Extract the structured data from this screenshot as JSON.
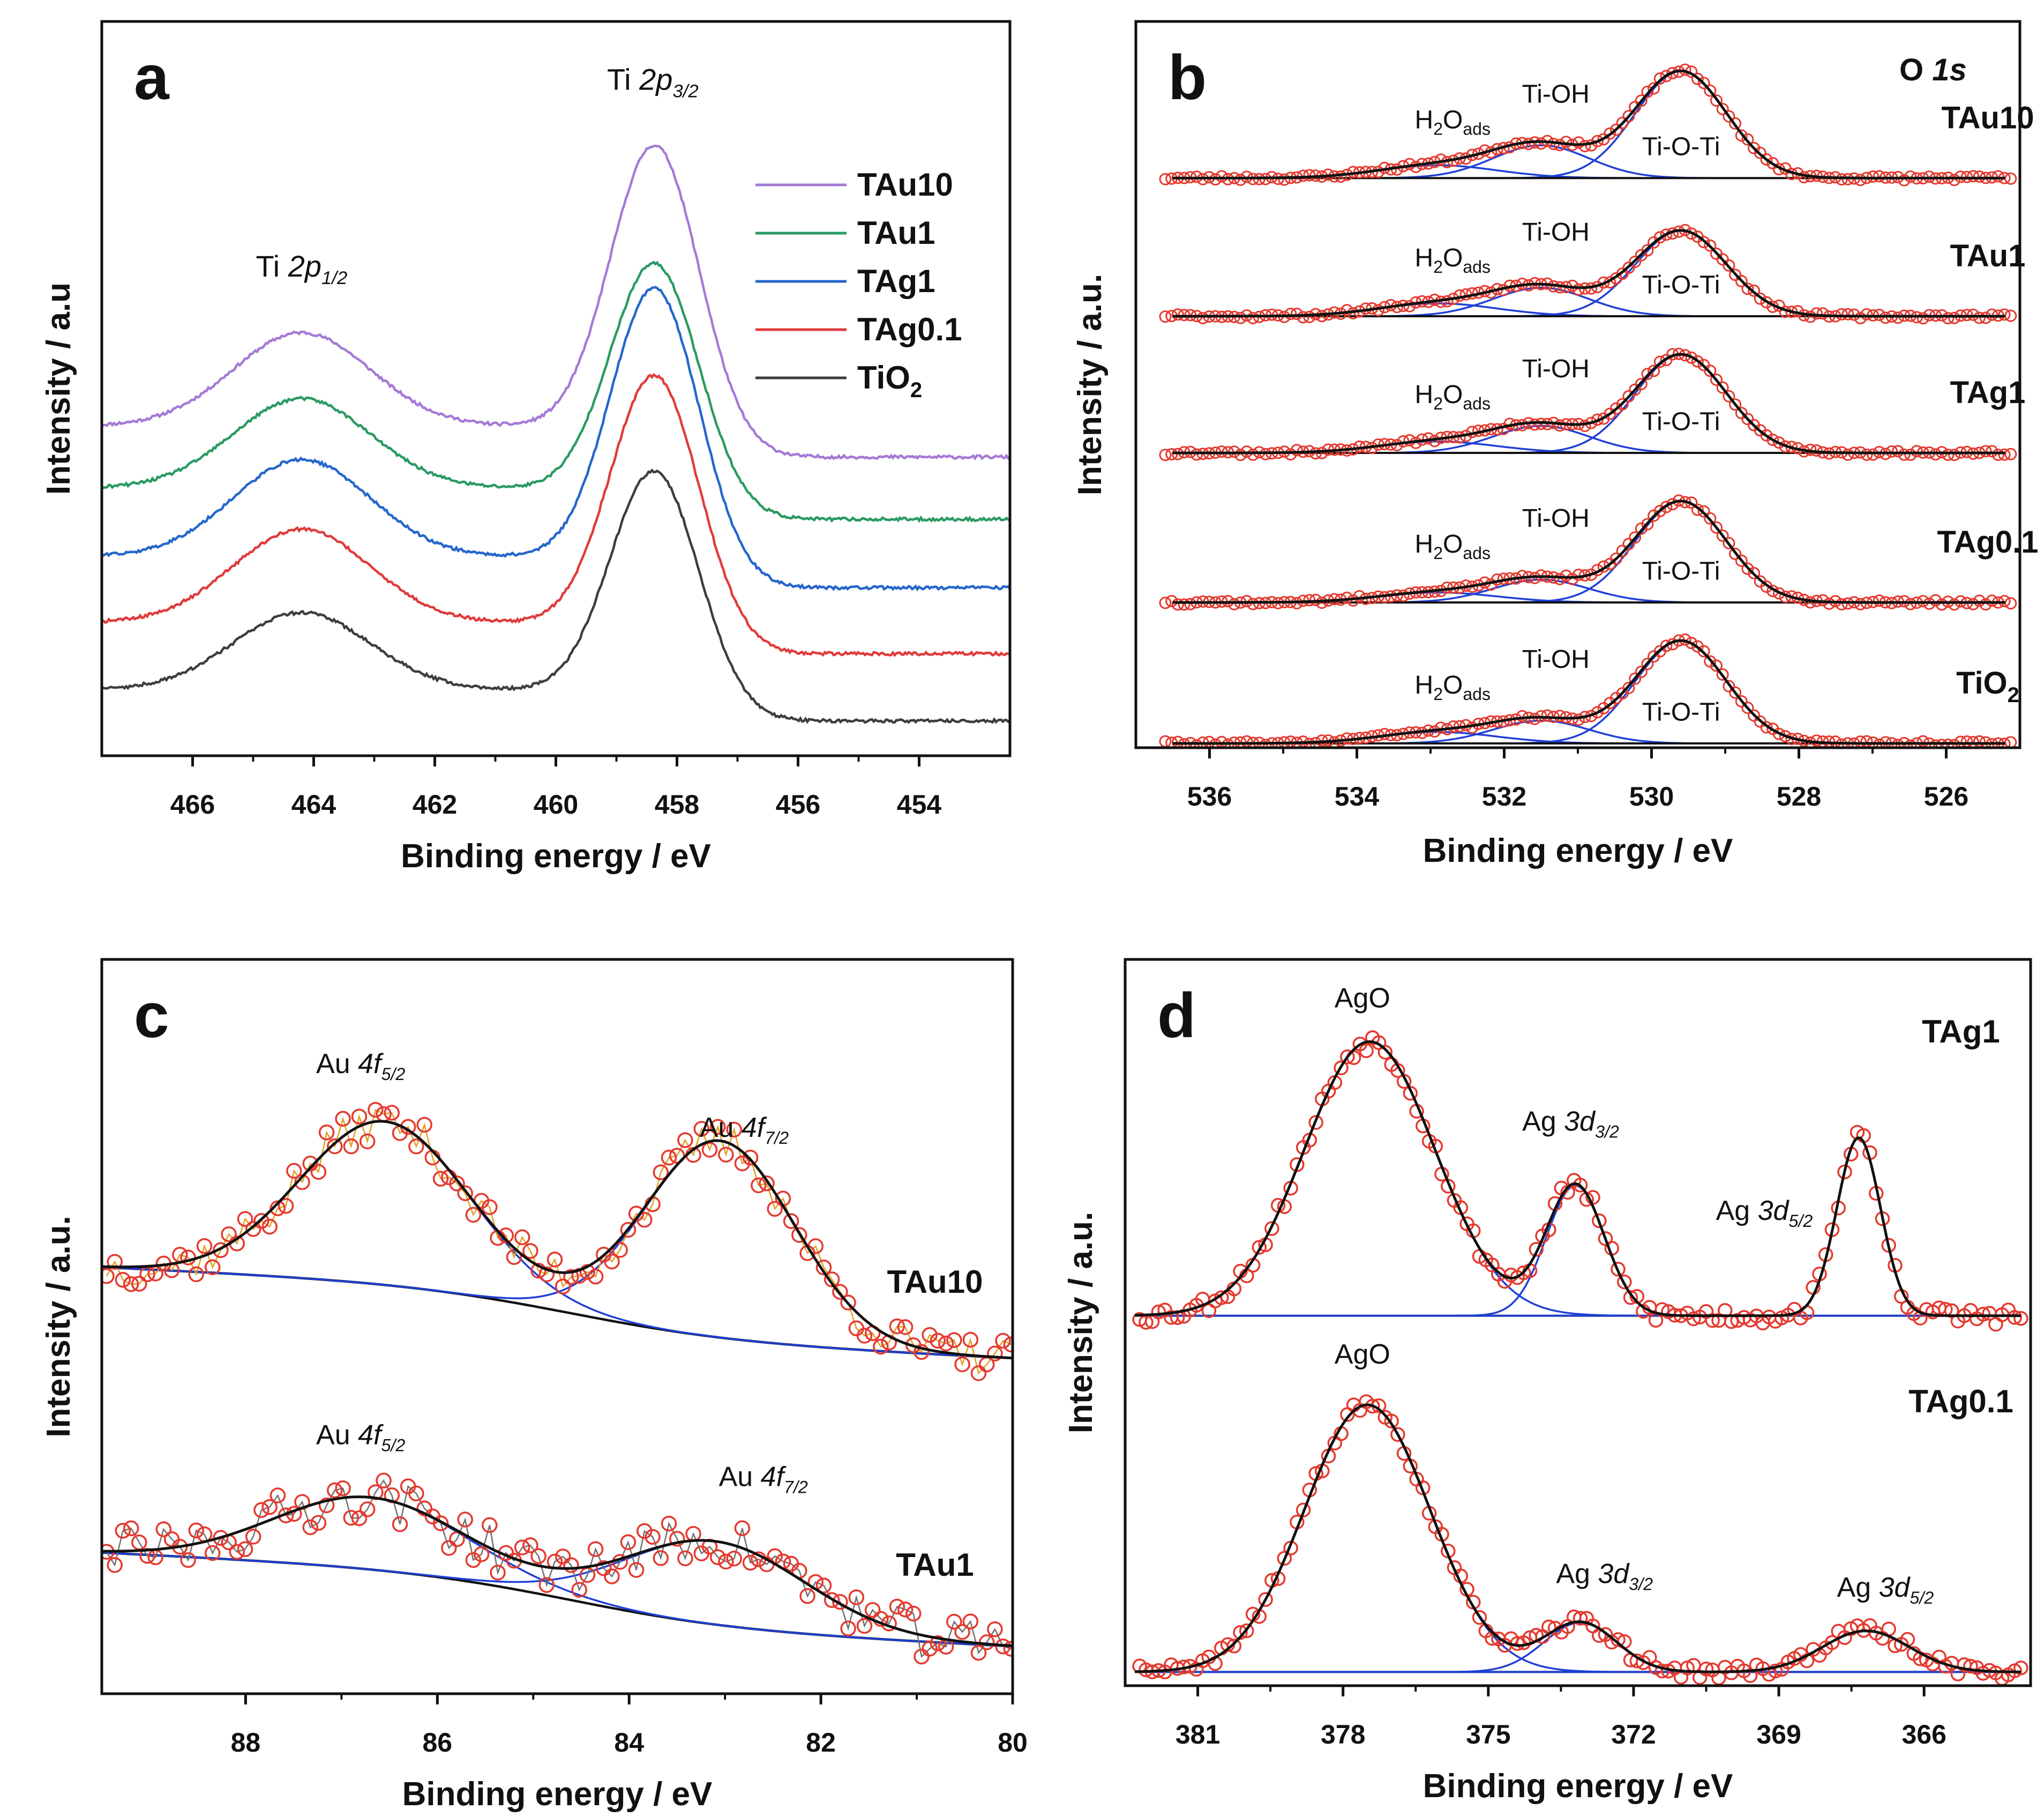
{
  "figure": "XPS spectra, four panels",
  "chart_data": [
    {
      "panel": "a",
      "type": "line",
      "xlabel": "Binding energy / eV",
      "ylabel": "Intensity / a.u",
      "xlim": [
        467.5,
        452.5
      ],
      "ylim": [
        -0.1,
        5.8
      ],
      "xticks": [
        466,
        464,
        462,
        460,
        458,
        456,
        454
      ],
      "tick_labels": [
        "466",
        "464",
        "462",
        "460",
        "458",
        "456",
        "454"
      ],
      "peak_labels": [
        {
          "base": "Ti ",
          "italic": "2p",
          "sub": "1/2",
          "x": 464.2,
          "y": 3.75
        },
        {
          "base": "Ti ",
          "italic": "2p",
          "sub": "3/2",
          "x": 458.4,
          "y": 5.25
        }
      ],
      "series": [
        {
          "name": "TAu10",
          "label": "TAu10",
          "color": "#a47ad6",
          "offset": 2.3,
          "base": [
            0.2,
            0.0
          ],
          "p1": [
            464.2,
            0.75,
            0.73
          ],
          "p2": [
            458.35,
            2.45,
            0.5
          ]
        },
        {
          "name": "TAu1",
          "label": "TAu1",
          "color": "#2a9a62",
          "offset": 1.8,
          "base": [
            0.2,
            0.0
          ],
          "p1": [
            464.2,
            0.72,
            0.73
          ],
          "p2": [
            458.35,
            2.0,
            0.5
          ]
        },
        {
          "name": "TAg1",
          "label": "TAg1",
          "color": "#2566cc",
          "offset": 1.25,
          "base": [
            0.2,
            0.0
          ],
          "p1": [
            464.2,
            0.78,
            0.73
          ],
          "p2": [
            458.35,
            2.35,
            0.5
          ]
        },
        {
          "name": "TAg0.1",
          "label": "TAg0.1",
          "color": "#e03b3b",
          "offset": 0.72,
          "base": [
            0.18,
            0.0
          ],
          "p1": [
            464.2,
            0.75,
            0.73
          ],
          "p2": [
            458.35,
            2.18,
            0.5
          ]
        },
        {
          "name": "TiO2",
          "label": "TiO",
          "label_sub": "2",
          "color": "#3d3d3d",
          "offset": 0.18,
          "base": [
            0.2,
            0.0
          ],
          "p1": [
            464.2,
            0.62,
            0.73
          ],
          "p2": [
            458.35,
            1.95,
            0.5
          ]
        }
      ]
    },
    {
      "panel": "b",
      "type": "line",
      "title": "O 1s",
      "title_parts": {
        "base": "O ",
        "italic": "1s"
      },
      "xlabel": "Binding energy / eV",
      "ylabel": "Intensity / a.u.",
      "xlim": [
        537,
        525
      ],
      "ylim": [
        0,
        5.1
      ],
      "xticks": [
        536,
        534,
        532,
        530,
        528,
        526
      ],
      "tick_labels": [
        "536",
        "534",
        "532",
        "530",
        "528",
        "526"
      ],
      "components": [
        {
          "name": "H2Oads",
          "label": "H",
          "label_sub": "2",
          "label_mid": "O",
          "label_sub2": "ads",
          "center": 532.9,
          "sigma": 0.8
        },
        {
          "name": "Ti-OH",
          "label": "Ti-OH",
          "center": 531.5,
          "sigma": 0.65
        },
        {
          "name": "Ti-O-Ti",
          "label": "Ti-O-Ti",
          "center": 529.6,
          "sigma": 0.62
        }
      ],
      "samples": [
        {
          "name": "TAu10",
          "label": "TAu10",
          "offset": 4.0,
          "amps": [
            0.09,
            0.23,
            0.75
          ]
        },
        {
          "name": "TAu1",
          "label": "TAu1",
          "offset": 3.03,
          "amps": [
            0.09,
            0.2,
            0.6
          ]
        },
        {
          "name": "TAg1",
          "label": "TAg1",
          "offset": 2.07,
          "amps": [
            0.08,
            0.19,
            0.69
          ]
        },
        {
          "name": "TAg0.1",
          "label": "TAg0.1",
          "offset": 1.02,
          "amps": [
            0.07,
            0.16,
            0.71
          ]
        },
        {
          "name": "TiO2",
          "label": "TiO",
          "label_sub": "2",
          "offset": 0.03,
          "amps": [
            0.08,
            0.16,
            0.72
          ]
        }
      ]
    },
    {
      "panel": "c",
      "type": "scatter",
      "xlabel": "Binding energy / eV",
      "ylabel": "Intensity / a.u.",
      "xlim": [
        89.5,
        80
      ],
      "ylim": [
        -0.3,
        5.0
      ],
      "xticks": [
        88,
        86,
        84,
        82,
        80
      ],
      "tick_labels": [
        "88",
        "86",
        "84",
        "82",
        "80"
      ],
      "samples": [
        {
          "name": "TAu10",
          "label": "TAu10",
          "link_color": "#e0a020",
          "bg": [
            2.78,
            2.12
          ],
          "bg_step": 84.6,
          "peaks": [
            [
              86.55,
              1.18,
              0.88
            ],
            [
              83.05,
              1.42,
              0.78
            ]
          ],
          "noise": 0.09
        },
        {
          "name": "TAu1",
          "label": "TAu1",
          "link_color": "#707070",
          "bg": [
            0.72,
            0.04
          ],
          "bg_step": 84.6,
          "peaks": [
            [
              86.7,
              0.52,
              1.0
            ],
            [
              83.1,
              0.6,
              0.95
            ]
          ],
          "noise": 0.11
        }
      ],
      "annotations": [
        {
          "base": "Au ",
          "italic": "4f",
          "sub": "5/2",
          "x": 86.8,
          "y": 4.18
        },
        {
          "base": "Au ",
          "italic": "4f",
          "sub": "7/2",
          "x": 82.8,
          "y": 3.72
        },
        {
          "base": "Au ",
          "italic": "4f",
          "sub": "5/2",
          "x": 86.8,
          "y": 1.5
        },
        {
          "base": "Au ",
          "italic": "4f",
          "sub": "7/2",
          "x": 82.6,
          "y": 1.2
        }
      ]
    },
    {
      "panel": "d",
      "type": "scatter",
      "xlabel": "Binding energy / eV",
      "ylabel": "Intensity / a.u.",
      "xlim": [
        382.5,
        363.8
      ],
      "ylim": [
        -0.1,
        5.2
      ],
      "xticks": [
        381,
        378,
        375,
        372,
        369,
        366
      ],
      "tick_labels": [
        "381",
        "378",
        "375",
        "372",
        "369",
        "366"
      ],
      "samples": [
        {
          "name": "TAg1",
          "label": "TAg1",
          "offset": 2.6,
          "peaks": [
            [
              377.45,
              2.0,
              1.35
            ],
            [
              373.2,
              0.95,
              0.6
            ],
            [
              367.35,
              1.3,
              0.45
            ]
          ],
          "noise": 0.05
        },
        {
          "name": "TAg0.1",
          "label": "TAg0.1",
          "offset": 0.0,
          "peaks": [
            [
              377.5,
              1.95,
              1.3
            ],
            [
              373.1,
              0.36,
              0.75
            ],
            [
              367.2,
              0.3,
              0.9
            ]
          ],
          "noise": 0.04
        }
      ],
      "annotations": [
        {
          "base": "AgO",
          "x": 377.6,
          "y": 4.85
        },
        {
          "base": "Ag ",
          "italic": "3d",
          "sub": "3/2",
          "x": 373.3,
          "y": 3.95
        },
        {
          "base": "Ag ",
          "italic": "3d",
          "sub": "5/2",
          "x": 369.3,
          "y": 3.3
        },
        {
          "base": "AgO",
          "x": 377.6,
          "y": 2.25
        },
        {
          "base": "Ag ",
          "italic": "3d",
          "sub": "3/2",
          "x": 372.6,
          "y": 0.65
        },
        {
          "base": "Ag ",
          "italic": "3d",
          "sub": "5/2",
          "x": 366.8,
          "y": 0.55
        }
      ]
    }
  ]
}
